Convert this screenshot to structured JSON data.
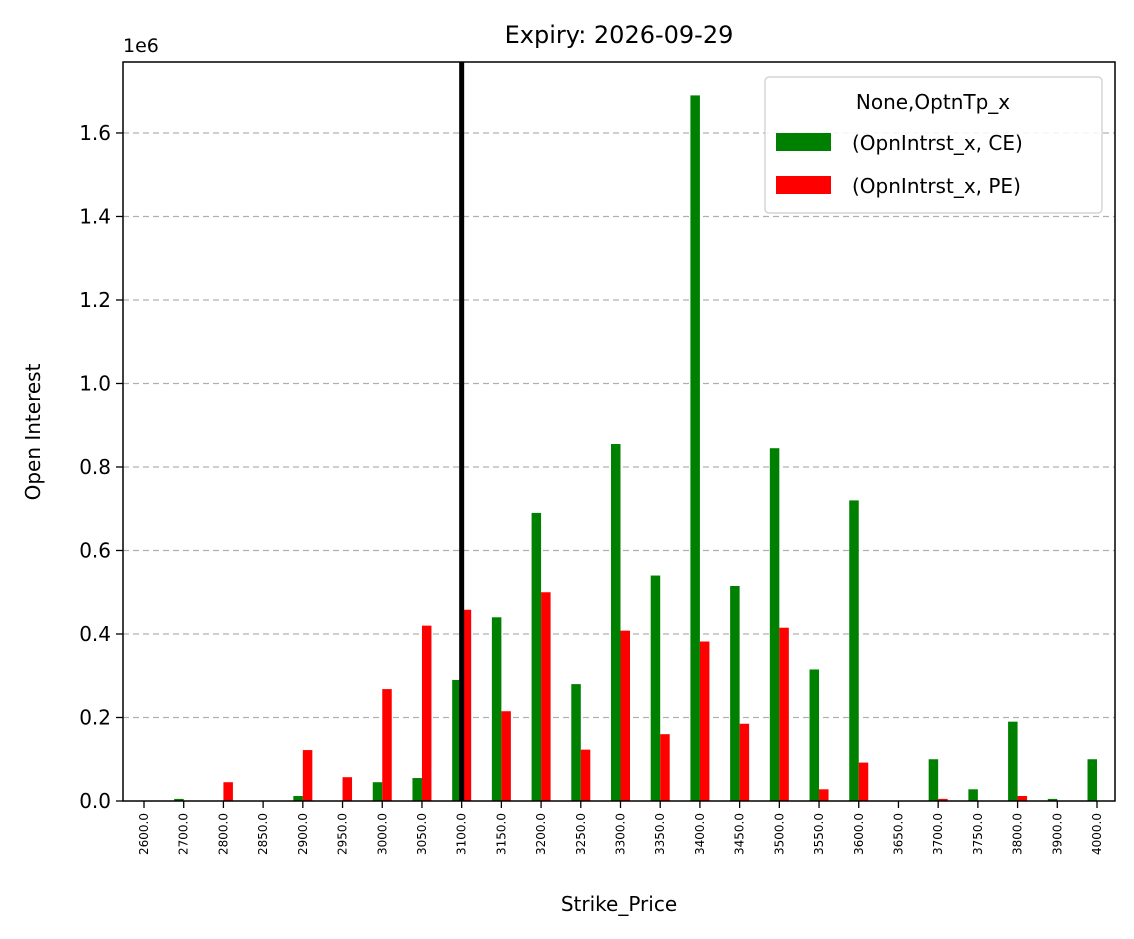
{
  "chart_data": {
    "type": "bar",
    "title": "Expiry: 2026-09-29",
    "xlabel": "Strike_Price",
    "ylabel": "Open Interest",
    "y_offset_text": "1e6",
    "ylim": [
      0,
      1.77
    ],
    "yticks": [
      0.0,
      0.2,
      0.4,
      0.6,
      0.8,
      1.0,
      1.2,
      1.4,
      1.6
    ],
    "ytick_labels": [
      "0.0",
      "0.2",
      "0.4",
      "0.6",
      "0.8",
      "1.0",
      "1.2",
      "1.4",
      "1.6"
    ],
    "grid": "y-dashed",
    "categories": [
      "2600.0",
      "2700.0",
      "2800.0",
      "2850.0",
      "2900.0",
      "2950.0",
      "3000.0",
      "3050.0",
      "3100.0",
      "3150.0",
      "3200.0",
      "3250.0",
      "3300.0",
      "3350.0",
      "3400.0",
      "3450.0",
      "3500.0",
      "3550.0",
      "3600.0",
      "3650.0",
      "3700.0",
      "3750.0",
      "3800.0",
      "3900.0",
      "4000.0"
    ],
    "vertical_line_at": "3100.0",
    "legend": {
      "title": "None,OptnTp_x",
      "placement": "top-right"
    },
    "series": [
      {
        "name": "(OpnIntrst_x, CE)",
        "color": "#008000",
        "values": [
          0.0,
          0.005,
          0.0,
          0.0,
          0.012,
          0.0,
          0.045,
          0.055,
          0.29,
          0.44,
          0.69,
          0.28,
          0.855,
          0.54,
          1.69,
          0.515,
          0.845,
          0.315,
          0.72,
          0.0,
          0.1,
          0.028,
          0.19,
          0.005,
          0.1
        ]
      },
      {
        "name": "(OpnIntrst_x, PE)",
        "color": "#ff0000",
        "values": [
          0.0,
          0.0,
          0.045,
          0.0,
          0.122,
          0.057,
          0.268,
          0.42,
          0.458,
          0.215,
          0.5,
          0.123,
          0.408,
          0.16,
          0.382,
          0.185,
          0.415,
          0.028,
          0.092,
          0.0,
          0.005,
          0.0,
          0.012,
          0.0,
          0.0
        ]
      }
    ]
  }
}
